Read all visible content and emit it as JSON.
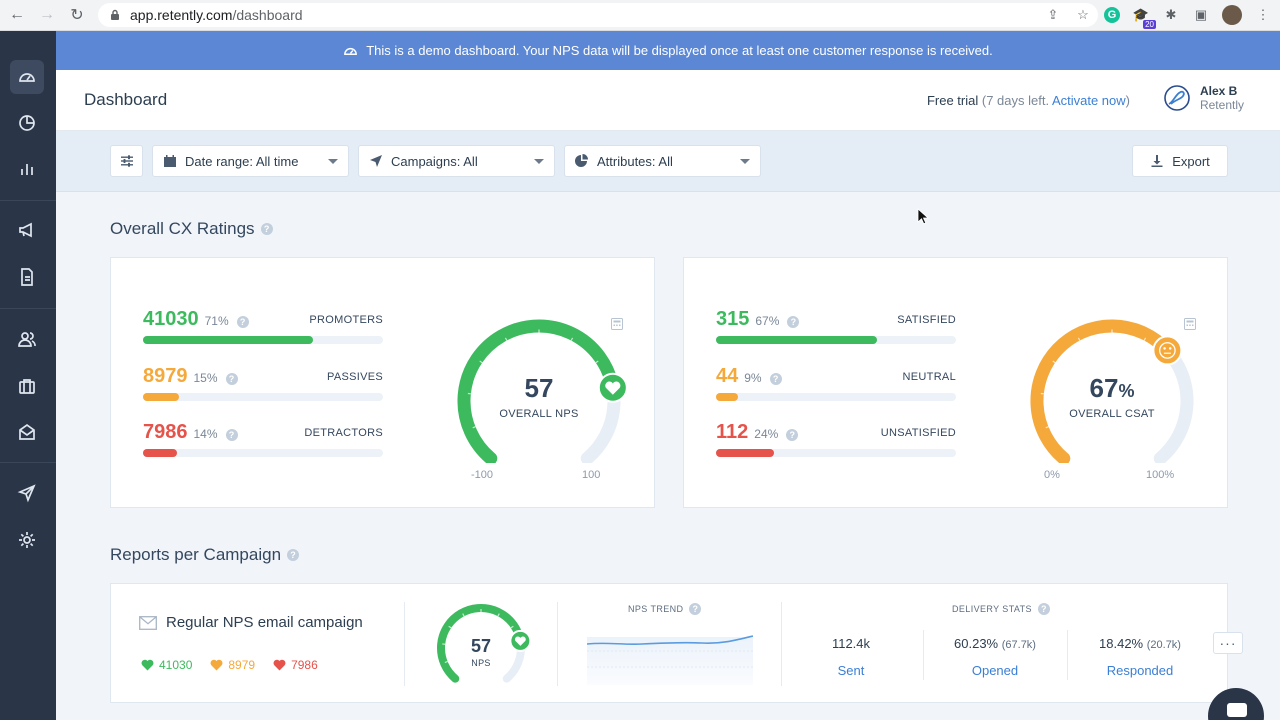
{
  "browser": {
    "url_host": "app.retently.com",
    "url_path": "/dashboard",
    "ext_badge": "20"
  },
  "banner": {
    "text": "This is a demo dashboard. Your NPS data will be displayed once at least one customer response is received."
  },
  "header": {
    "title": "Dashboard",
    "trial_label": "Free trial",
    "trial_open": "(7 days left. ",
    "trial_link": "Activate now",
    "trial_close": ")",
    "user_name": "Alex B",
    "user_org": "Retently"
  },
  "filters": {
    "date_range": "Date range: All time",
    "campaigns": "Campaigns: All",
    "attributes": "Attributes: All",
    "export": "Export"
  },
  "cx": {
    "title": "Overall CX Ratings",
    "nps": {
      "rows": [
        {
          "value": "41030",
          "pct": "71%",
          "label": "PROMOTERS",
          "fill": 0.71,
          "color": "#3dba5e"
        },
        {
          "value": "8979",
          "pct": "15%",
          "label": "PASSIVES",
          "fill": 0.15,
          "color": "#f5a93a"
        },
        {
          "value": "7986",
          "pct": "14%",
          "label": "DETRACTORS",
          "fill": 0.14,
          "color": "#e5534b"
        }
      ],
      "gauge_value": "57",
      "gauge_fraction": 0.785,
      "gauge_caption": "OVERALL NPS",
      "min_label": "-100",
      "max_label": "100"
    },
    "csat": {
      "rows": [
        {
          "value": "315",
          "pct": "67%",
          "label": "SATISFIED",
          "fill": 0.67,
          "color": "#3dba5e"
        },
        {
          "value": "44",
          "pct": "9%",
          "label": "NEUTRAL",
          "fill": 0.09,
          "color": "#f5a93a"
        },
        {
          "value": "112",
          "pct": "24%",
          "label": "UNSATISFIED",
          "fill": 0.24,
          "color": "#e5534b"
        }
      ],
      "gauge_value": "67",
      "gauge_unit": "%",
      "gauge_fraction": 0.67,
      "gauge_caption": "OVERALL CSAT",
      "min_label": "0%",
      "max_label": "100%"
    }
  },
  "campaigns": {
    "title": "Reports per Campaign",
    "items": [
      {
        "name": "Regular NPS email campaign",
        "promoters": "41030",
        "passives": "8979",
        "detractors": "7986",
        "gauge_value": "57",
        "gauge_fraction": 0.785,
        "gauge_caption": "NPS",
        "trend_title": "NPS TREND",
        "delivery_title": "DELIVERY STATS",
        "sent_value": "112.4k",
        "sent_label": "Sent",
        "opened_value": "60.23%",
        "opened_sub": "(67.7k)",
        "opened_label": "Opened",
        "responded_value": "18.42%",
        "responded_sub": "(20.7k)",
        "responded_label": "Responded"
      }
    ]
  },
  "colors": {
    "green": "#3dba5e",
    "orange": "#f5a93a",
    "red": "#e5534b",
    "track": "#e8eef5",
    "accent": "#3b7fd4"
  }
}
